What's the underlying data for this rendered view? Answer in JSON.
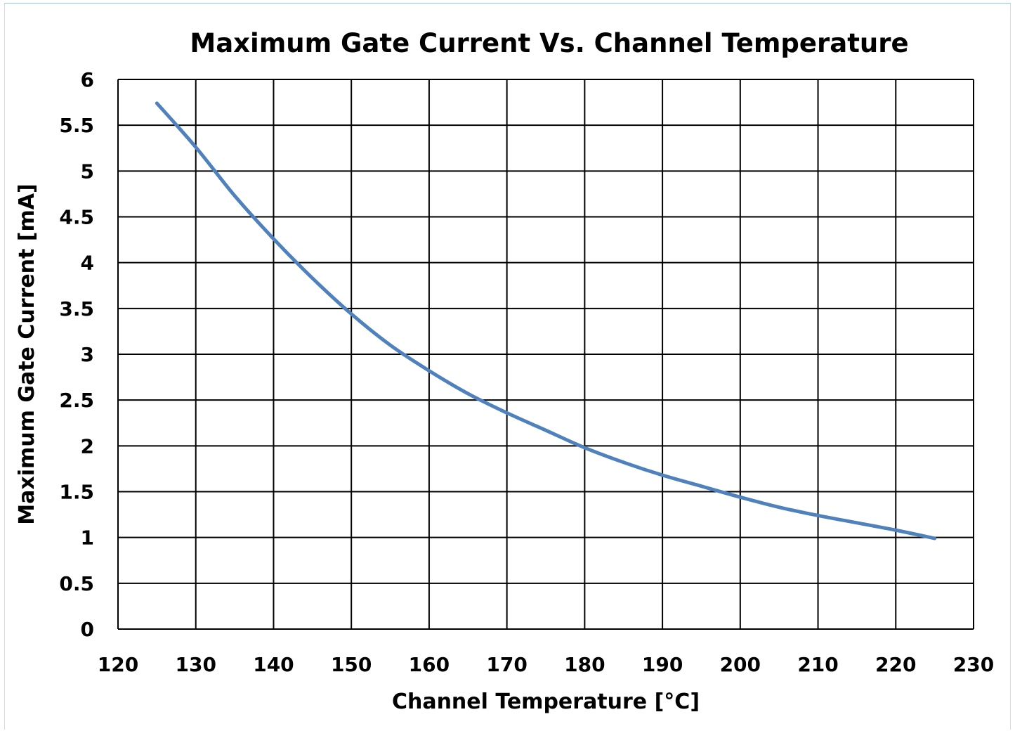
{
  "chart_data": {
    "type": "line",
    "title": "Maximum Gate Current Vs. Channel Temperature",
    "xlabel": "Channel Temperature [°C]",
    "ylabel": "Maximum Gate Current [mA]",
    "xlim": [
      120,
      230
    ],
    "ylim": [
      0,
      6
    ],
    "x_ticks": [
      "120",
      "130",
      "140",
      "150",
      "160",
      "170",
      "180",
      "190",
      "200",
      "210",
      "220",
      "230"
    ],
    "y_ticks": [
      "0",
      "0.5",
      "1",
      "1.5",
      "2",
      "2.5",
      "3",
      "3.5",
      "4",
      "4.5",
      "5",
      "5.5",
      "6"
    ],
    "grid": true,
    "legend": "none",
    "series": [
      {
        "color": "#4f81bd",
        "x": [
          125,
          130,
          135,
          140,
          145,
          150,
          155,
          160,
          165,
          170,
          175,
          180,
          185,
          190,
          195,
          200,
          205,
          210,
          215,
          220,
          225
        ],
        "y": [
          5.74,
          5.26,
          4.73,
          4.26,
          3.83,
          3.44,
          3.1,
          2.82,
          2.57,
          2.36,
          2.17,
          1.98,
          1.82,
          1.68,
          1.56,
          1.44,
          1.33,
          1.24,
          1.16,
          1.08,
          0.99
        ]
      }
    ]
  }
}
